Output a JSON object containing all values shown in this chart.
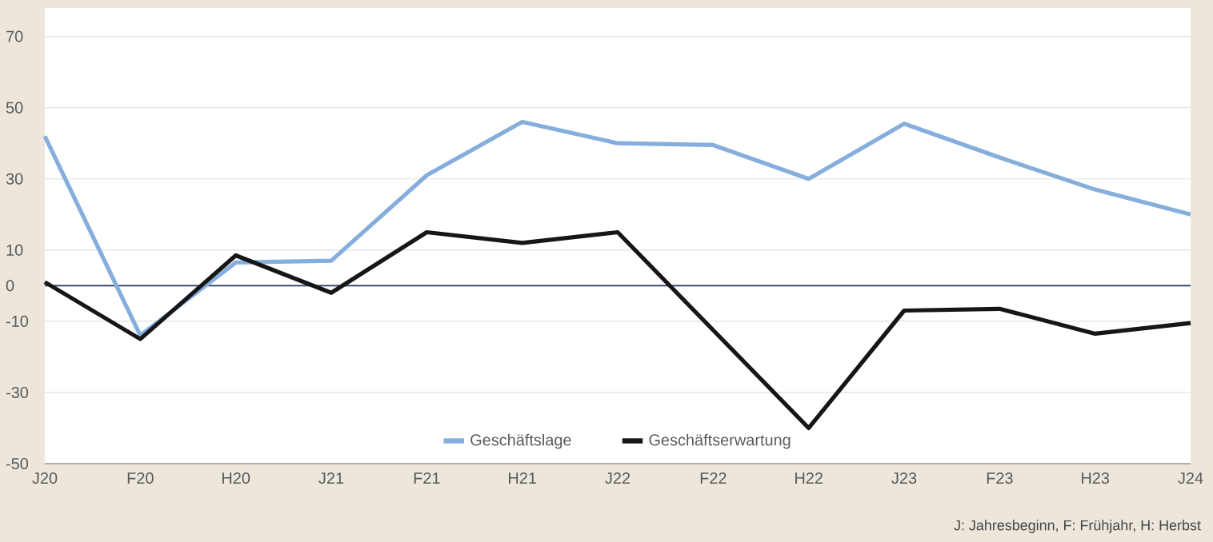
{
  "chart_data": {
    "type": "line",
    "categories": [
      "J20",
      "F20",
      "H20",
      "J21",
      "F21",
      "H21",
      "J22",
      "F22",
      "H22",
      "J23",
      "F23",
      "H23",
      "J24"
    ],
    "series": [
      {
        "name": "Geschäftslage",
        "color": "#86aedd",
        "values": [
          42,
          -14,
          6.5,
          7,
          31,
          46,
          40,
          39.5,
          30,
          45.5,
          36,
          27,
          20
        ]
      },
      {
        "name": "Geschäftserwartung",
        "color": "#161616",
        "values": [
          1,
          -15,
          8.5,
          -2,
          15,
          12,
          15,
          -12.5,
          -40,
          -7,
          -6.5,
          -13.5,
          -10.5
        ]
      }
    ],
    "ylim": [
      -50,
      78
    ],
    "yticks": [
      -50,
      -30,
      -10,
      0,
      10,
      30,
      50,
      70
    ],
    "grid": "y",
    "legend": "bottom",
    "marker": "none",
    "line_style": "solid",
    "ref_lines": [
      {
        "axis": "y",
        "value": 0,
        "color": "#1f3a5f"
      }
    ],
    "annotations": [
      "J: Jahresbeginn, F: Frühjahr, H: Herbst"
    ]
  }
}
